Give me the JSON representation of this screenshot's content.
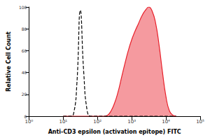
{
  "chart_data": {
    "type": "line",
    "x_label": "Anti-CD3 epsilon (activation epitope) FITC",
    "y_label": "Relative Cell Count",
    "log": "x",
    "grid": false,
    "x": [
      10,
      12.6,
      15.8,
      20,
      25.1,
      31.6,
      39.8,
      50.1,
      63.1,
      79.4,
      100,
      126,
      158,
      200,
      251,
      316,
      398,
      501,
      631,
      794,
      1000,
      1259,
      1585,
      1995,
      2512,
      3162,
      3981,
      5012,
      6310,
      7943,
      10000,
      12589,
      15849,
      19953
    ],
    "series": [
      {
        "type": "line",
        "color": "#000000",
        "line_style": "dashed",
        "values": [
          0,
          0,
          0,
          2,
          30,
          97,
          40,
          5,
          0,
          0,
          0,
          0,
          0,
          0,
          0,
          0,
          0,
          0,
          0,
          0,
          0,
          0,
          0,
          0,
          0,
          0,
          0,
          0,
          0,
          0,
          0,
          0,
          0,
          0
        ]
      },
      {
        "type": "area",
        "color": "#e8202a",
        "line_style": "solid",
        "values": [
          0,
          0,
          0,
          0,
          0,
          0,
          0,
          0,
          0,
          0,
          0,
          0,
          0,
          1,
          5,
          12,
          22,
          35,
          48,
          60,
          70,
          78,
          85,
          92,
          97,
          100,
          96,
          85,
          65,
          40,
          18,
          5,
          1,
          0
        ]
      }
    ],
    "xlim": [
      1,
      100000
    ],
    "xticks": [
      {
        "value": 1,
        "label": "10⁰"
      },
      {
        "value": 10,
        "label": "10¹"
      },
      {
        "value": 100,
        "label": "10²"
      },
      {
        "value": 1000,
        "label": "10³"
      },
      {
        "value": 10000,
        "label": "10⁴"
      },
      {
        "value": 100000,
        "label": "10⁵"
      }
    ],
    "ylim": [
      0,
      100
    ],
    "yticks": [
      0,
      20,
      40,
      60,
      80,
      100
    ]
  }
}
